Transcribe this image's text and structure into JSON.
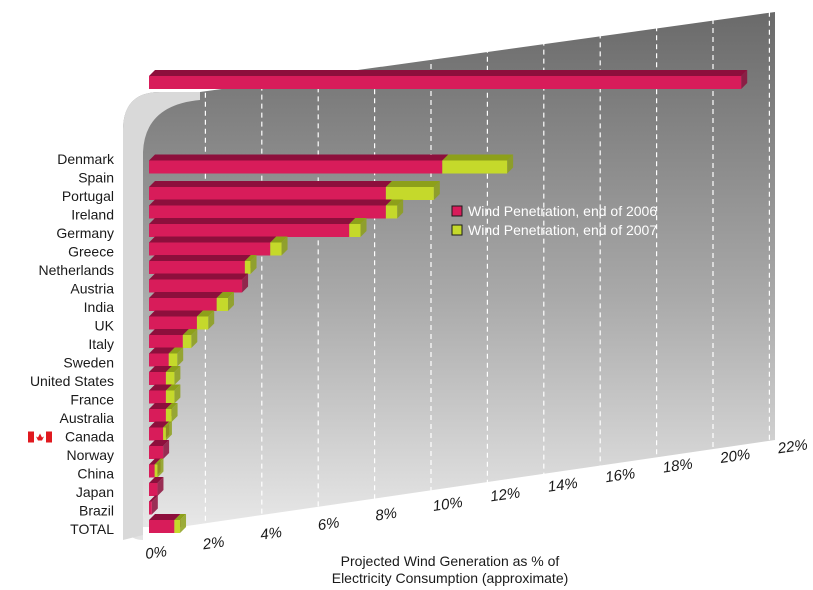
{
  "chart_data": {
    "type": "bar",
    "orientation": "horizontal",
    "stacked": true,
    "categories": [
      "Denmark",
      "Spain",
      "Portugal",
      "Ireland",
      "Germany",
      "Greece",
      "Netherlands",
      "Austria",
      "India",
      "UK",
      "Italy",
      "Sweden",
      "United States",
      "France",
      "Australia",
      "Canada",
      "Norway",
      "China",
      "Japan",
      "Brazil",
      "TOTAL"
    ],
    "series": [
      {
        "name": "Wind Penetration, end of 2006",
        "color": "#d81c5a",
        "values": [
          21.0,
          10.4,
          8.4,
          8.4,
          7.1,
          4.3,
          3.4,
          3.3,
          2.4,
          1.7,
          1.2,
          0.7,
          0.6,
          0.6,
          0.6,
          0.5,
          0.5,
          0.2,
          0.3,
          0.1,
          0.9
        ]
      },
      {
        "name": "Wind Penetration, end of 2007",
        "color": "#c5d92b",
        "values": [
          0.0,
          2.3,
          1.7,
          0.4,
          0.4,
          0.4,
          0.2,
          0.0,
          0.4,
          0.4,
          0.3,
          0.3,
          0.3,
          0.3,
          0.2,
          0.1,
          0.0,
          0.1,
          0.0,
          0.0,
          0.2
        ]
      }
    ],
    "xticks": [
      "0%",
      "2%",
      "4%",
      "6%",
      "8%",
      "10%",
      "12%",
      "14%",
      "16%",
      "18%",
      "20%",
      "22%"
    ],
    "xlim": [
      0,
      22
    ],
    "xlabel_lines": [
      "Projected Wind Generation as % of",
      "Electricity Consumption (approximate)"
    ],
    "legend_position": "center-right",
    "grid": true,
    "flag_category": "Canada",
    "background_colors": {
      "wall_top": "#6a6a6a",
      "wall_bottom": "#e6e6e6",
      "bar_top": "#8d0f3c",
      "green_top": "#8da01a"
    }
  }
}
